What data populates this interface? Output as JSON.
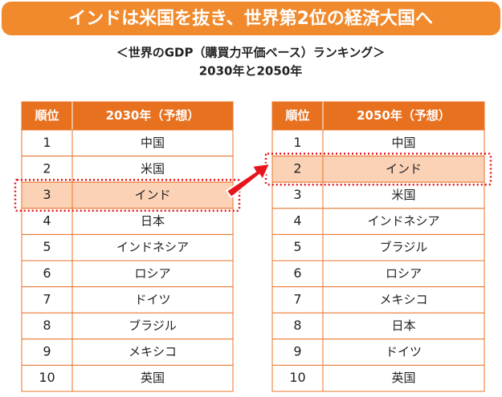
{
  "header": {
    "title": "インドは米国を抜き、世界第2位の経済大国へ",
    "subtitle": "＜世界のGDP（購買力平価ベース）ランキング＞",
    "subtitle2": "2030年と2050年"
  },
  "tables": [
    {
      "headers": [
        "順位",
        "2030年（予想）"
      ],
      "rows": [
        [
          1,
          "中国"
        ],
        [
          2,
          "米国"
        ],
        [
          3,
          "インド"
        ],
        [
          4,
          "日本"
        ],
        [
          5,
          "インドネシア"
        ],
        [
          6,
          "ロシア"
        ],
        [
          7,
          "ドイツ"
        ],
        [
          8,
          "ブラジル"
        ],
        [
          9,
          "メキシコ"
        ],
        [
          10,
          "英国"
        ]
      ]
    },
    {
      "headers": [
        "順位",
        "2050年（予想）"
      ],
      "rows": [
        [
          1,
          "中国"
        ],
        [
          2,
          "インド"
        ],
        [
          3,
          "米国"
        ],
        [
          4,
          "インドネシア"
        ],
        [
          5,
          "ブラジル"
        ],
        [
          6,
          "ロシア"
        ],
        [
          7,
          "メキシコ"
        ],
        [
          8,
          "日本"
        ],
        [
          9,
          "ドイツ"
        ],
        [
          10,
          "英国"
        ]
      ]
    }
  ]
}
